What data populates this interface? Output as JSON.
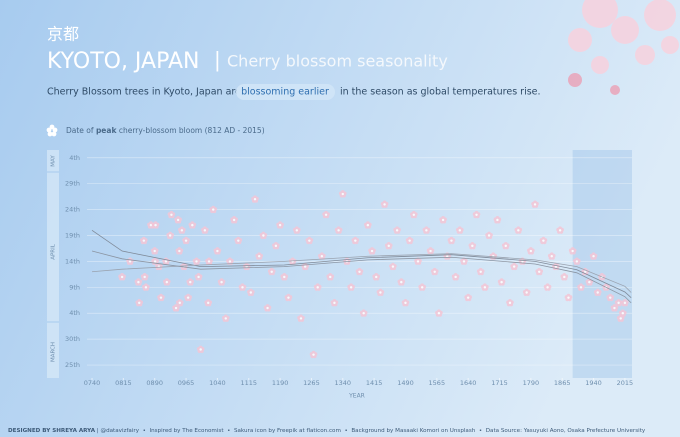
{
  "chart_data": {
    "type": "scatter",
    "title_native": "京都",
    "title": "KYOTO, JAPAN",
    "title_separator": "|",
    "title_secondary": "Cherry blossom seasonality",
    "subtitle_start": "Cherry Blossom trees in Kyoto, Japan are",
    "subtitle_highlight": "blossoming earlier",
    "subtitle_end": "in the season as global temperatures rise.",
    "legend_parts": [
      "Date of ",
      "peak",
      " cherry-blossom bloom (812 AD - 2015)"
    ],
    "x_label": "YEAR",
    "month_labels": [
      "MAY",
      "APRIL",
      "MARCH"
    ],
    "footer_credit": "DESIGNED BY SHREYA ARYA",
    "footer_rest": " | @datavizfairy  •  Inspired by The Economist  •  Sakura icon by Freepik at flaticon.com  •  Background by Masaaki Komori on Unsplash  •  Data Source: Yasuyuki Aono, Osaka Prefecture University",
    "marker_color": "#f4c6d6",
    "grid": true,
    "xlim": [
      728,
      2032
    ],
    "ylim": [
      81.5,
      125.5
    ],
    "shaded_x": [
      1890,
      2032
    ],
    "xticks": [
      {
        "value": 740,
        "label": "0740"
      },
      {
        "value": 815,
        "label": "0815"
      },
      {
        "value": 890,
        "label": "0890"
      },
      {
        "value": 965,
        "label": "0965"
      },
      1040,
      1115,
      1190,
      1265,
      1340,
      1415,
      1490,
      1565,
      1640,
      1715,
      1790,
      1865,
      1940,
      2015
    ],
    "yticks": [
      {
        "value": 84,
        "label": "25th"
      },
      {
        "value": 89,
        "label": "30th"
      },
      {
        "value": 94,
        "label": "4th"
      },
      {
        "value": 99,
        "label": "9th"
      },
      {
        "value": 104,
        "label": "14th"
      },
      {
        "value": 109,
        "label": "19th"
      },
      {
        "value": 114,
        "label": "24th"
      },
      {
        "value": 119,
        "label": "29th"
      },
      {
        "value": 124,
        "label": "4th"
      }
    ],
    "x": [
      812,
      831,
      851,
      853,
      864,
      866,
      869,
      881,
      890,
      891,
      892,
      900,
      905,
      917,
      919,
      927,
      930,
      941,
      946,
      949,
      950,
      955,
      960,
      965,
      970,
      975,
      980,
      990,
      995,
      1000,
      1010,
      1018,
      1020,
      1030,
      1040,
      1050,
      1060,
      1070,
      1080,
      1090,
      1100,
      1110,
      1120,
      1130,
      1140,
      1150,
      1160,
      1170,
      1180,
      1190,
      1200,
      1210,
      1220,
      1230,
      1240,
      1250,
      1260,
      1270,
      1280,
      1290,
      1300,
      1310,
      1320,
      1330,
      1340,
      1350,
      1360,
      1370,
      1380,
      1390,
      1400,
      1410,
      1420,
      1430,
      1440,
      1450,
      1460,
      1470,
      1480,
      1490,
      1500,
      1510,
      1520,
      1530,
      1540,
      1550,
      1560,
      1570,
      1580,
      1590,
      1600,
      1610,
      1620,
      1630,
      1640,
      1650,
      1660,
      1670,
      1680,
      1690,
      1700,
      1710,
      1720,
      1730,
      1740,
      1750,
      1760,
      1770,
      1780,
      1790,
      1800,
      1810,
      1820,
      1830,
      1840,
      1850,
      1860,
      1870,
      1880,
      1890,
      1900,
      1910,
      1920,
      1930,
      1940,
      1950,
      1960,
      1970,
      1980,
      1990,
      2000,
      2005,
      2010,
      2015
    ],
    "values": [
      101,
      104,
      100,
      96,
      108,
      101,
      99,
      111,
      106,
      104,
      111,
      103,
      97,
      104,
      100,
      109,
      113,
      95,
      112,
      106,
      96,
      110,
      103,
      108,
      97,
      100,
      111,
      104,
      101,
      87,
      110,
      96,
      104,
      114,
      106,
      100,
      93,
      104,
      112,
      108,
      99,
      103,
      98,
      116,
      105,
      109,
      95,
      102,
      107,
      111,
      101,
      97,
      104,
      110,
      93,
      103,
      108,
      86,
      99,
      105,
      113,
      101,
      96,
      110,
      117,
      104,
      99,
      108,
      102,
      94,
      111,
      106,
      101,
      98,
      115,
      107,
      103,
      110,
      100,
      96,
      108,
      113,
      104,
      99,
      110,
      106,
      102,
      94,
      112,
      105,
      108,
      101,
      110,
      104,
      97,
      107,
      113,
      102,
      99,
      109,
      105,
      112,
      100,
      107,
      96,
      103,
      110,
      104,
      98,
      106,
      115,
      102,
      108,
      99,
      105,
      103,
      110,
      101,
      97,
      106,
      104,
      99,
      102,
      100,
      105,
      98,
      101,
      99,
      97,
      95,
      96,
      93,
      94,
      96
    ],
    "trend_lines": [
      {
        "color": "#7f8a99",
        "x": [
          740,
          812,
          1000,
          1200,
          1400,
          1600,
          1800,
          1900,
          2015,
          2030
        ],
        "values": [
          110,
          106,
          103,
          103.3,
          104.7,
          105.3,
          104,
          102.4,
          98.1,
          97
        ]
      },
      {
        "color": "#9aa3b0",
        "x": [
          740,
          812,
          1000,
          1200,
          1400,
          1600,
          1800,
          1900,
          2015,
          2030
        ],
        "values": [
          102,
          102.5,
          103.3,
          104,
          105,
          105.5,
          104.3,
          103,
          99.2,
          98
        ]
      },
      {
        "color": "#8b95a3",
        "x": [
          740,
          812,
          1000,
          1200,
          1400,
          1600,
          1800,
          1900,
          2015,
          2030
        ],
        "values": [
          106,
          104.5,
          102.5,
          103,
          104.3,
          104.8,
          103.5,
          101.8,
          97.2,
          96
        ]
      }
    ]
  }
}
